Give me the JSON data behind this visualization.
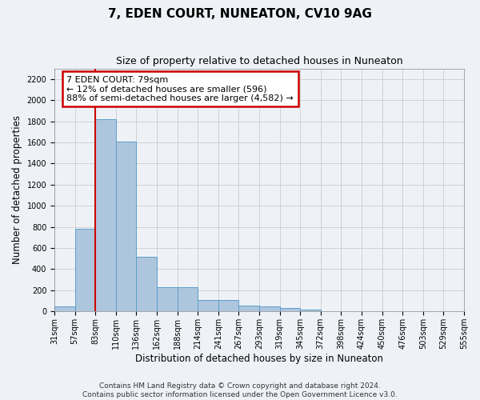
{
  "title": "7, EDEN COURT, NUNEATON, CV10 9AG",
  "subtitle": "Size of property relative to detached houses in Nuneaton",
  "xlabel": "Distribution of detached houses by size in Nuneaton",
  "ylabel": "Number of detached properties",
  "footer_line1": "Contains HM Land Registry data © Crown copyright and database right 2024.",
  "footer_line2": "Contains public sector information licensed under the Open Government Licence v3.0.",
  "bin_labels": [
    "31sqm",
    "57sqm",
    "83sqm",
    "110sqm",
    "136sqm",
    "162sqm",
    "188sqm",
    "214sqm",
    "241sqm",
    "267sqm",
    "293sqm",
    "319sqm",
    "345sqm",
    "372sqm",
    "398sqm",
    "424sqm",
    "450sqm",
    "476sqm",
    "503sqm",
    "529sqm",
    "555sqm"
  ],
  "bar_heights": [
    50,
    780,
    1820,
    1610,
    520,
    230,
    230,
    105,
    105,
    55,
    50,
    35,
    20,
    5,
    2,
    0,
    0,
    0,
    0,
    0
  ],
  "bar_color": "#aec6dd",
  "bar_edge_color": "#5b9dc9",
  "vline_x_index": 2,
  "annotation_line1": "7 EDEN COURT: 79sqm",
  "annotation_line2": "← 12% of detached houses are smaller (596)",
  "annotation_line3": "88% of semi-detached houses are larger (4,582) →",
  "annotation_box_color": "#ffffff",
  "annotation_box_edge": "#cc0000",
  "vline_color": "#cc0000",
  "ylim": [
    0,
    2300
  ],
  "yticks": [
    0,
    200,
    400,
    600,
    800,
    1000,
    1200,
    1400,
    1600,
    1800,
    2000,
    2200
  ],
  "grid_color": "#cccccc",
  "background_color": "#eef2f7",
  "title_fontsize": 11,
  "subtitle_fontsize": 9,
  "axis_label_fontsize": 8.5,
  "tick_fontsize": 7,
  "footer_fontsize": 6.5,
  "annotation_fontsize": 8
}
